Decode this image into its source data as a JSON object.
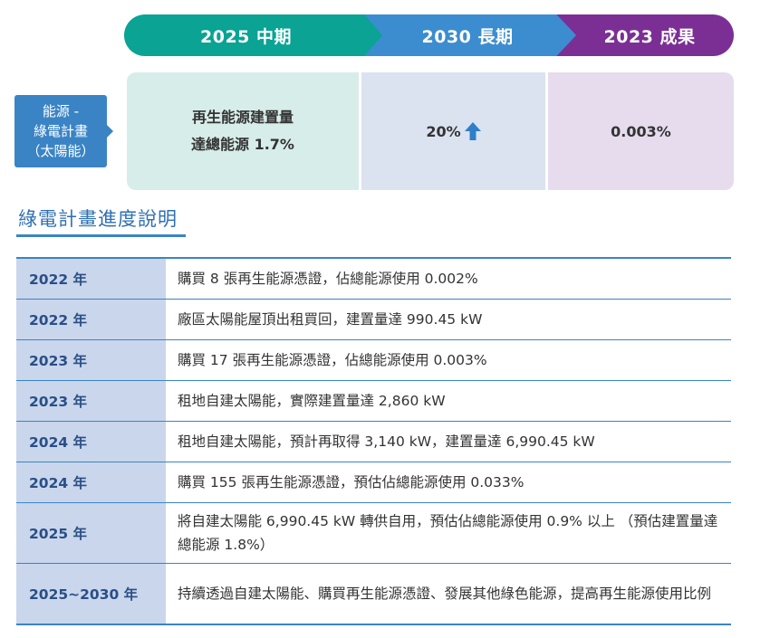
{
  "header": {
    "mid_term": "2025 中期",
    "long_term": "2030 長期",
    "result": "2023 成果"
  },
  "category_tag": {
    "line1": "能源 -",
    "line2": "綠電計畫",
    "line3": "（太陽能）"
  },
  "targets": {
    "mid_term_line1": "再生能源建置量",
    "mid_term_line2": "達總能源 1.7%",
    "long_term": "20%",
    "long_term_icon": "arrow-up-icon",
    "result": "0.003%"
  },
  "section_title": "綠電計畫進度說明",
  "progress_rows": [
    {
      "year": "2022 年",
      "text": "購買 8 張再生能源憑證，佔總能源使用 0.002%"
    },
    {
      "year": "2022 年",
      "text": "廠區太陽能屋頂出租買回，建置量達 990.45 kW"
    },
    {
      "year": "2023 年",
      "text": "購買 17 張再生能源憑證，佔總能源使用 0.003%"
    },
    {
      "year": "2023 年",
      "text": "租地自建太陽能，實際建置量達 2,860 kW"
    },
    {
      "year": "2024 年",
      "text": "租地自建太陽能，預計再取得 3,140 kW，建置量達 6,990.45 kW"
    },
    {
      "year": "2024 年",
      "text": "購買 155 張再生能源憑證，預估佔總能源使用 0.033%"
    },
    {
      "year": "2025 年",
      "text": "將自建太陽能 6,990.45 kW 轉供自用，預估佔總能源使用 0.9% 以上 （預估建置量達總能源 1.8%）"
    },
    {
      "year": "2025~2030 年",
      "text": "持續透過自建太陽能、購買再生能源憑證、發展其他綠色能源，提高再生能源使用比例"
    }
  ],
  "colors": {
    "mid_term": "#0aa394",
    "long_term": "#3c8dcf",
    "result": "#7b2f95",
    "accent": "#3a84c5"
  }
}
